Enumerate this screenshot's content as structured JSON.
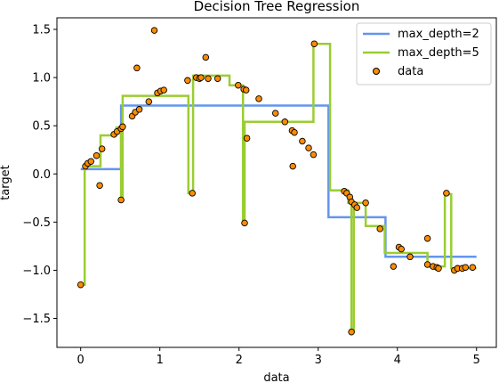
{
  "chart_data": {
    "type": "line",
    "title": "Decision Tree Regression",
    "xlabel": "data",
    "ylabel": "target",
    "xlim": [
      -0.3,
      5.25
    ],
    "ylim": [
      -1.8,
      1.62
    ],
    "xticks": [
      0,
      1,
      2,
      3,
      4,
      5
    ],
    "xtick_labels": [
      "0",
      "1",
      "2",
      "3",
      "4",
      "5"
    ],
    "yticks": [
      -1.5,
      -1.0,
      -0.5,
      0.0,
      0.5,
      1.0,
      1.5
    ],
    "ytick_labels": [
      "−1.5",
      "−1.0",
      "−0.5",
      "0.0",
      "0.5",
      "1.0",
      "1.5"
    ],
    "grid": false,
    "legend_position": "top-right",
    "series": [
      {
        "name": "max_depth=2",
        "kind": "step",
        "color": "#6495ED",
        "points": [
          [
            0.0,
            0.05
          ],
          [
            0.51,
            0.05
          ],
          [
            0.51,
            0.71
          ],
          [
            3.13,
            0.71
          ],
          [
            3.13,
            -0.45
          ],
          [
            3.85,
            -0.45
          ],
          [
            3.85,
            -0.86
          ],
          [
            5.0,
            -0.86
          ]
        ]
      },
      {
        "name": "max_depth=5",
        "kind": "step",
        "color": "#9ACD32",
        "points": [
          [
            0.0,
            -1.15
          ],
          [
            0.05,
            -1.15
          ],
          [
            0.05,
            0.08
          ],
          [
            0.25,
            0.08
          ],
          [
            0.25,
            0.4
          ],
          [
            0.45,
            0.4
          ],
          [
            0.45,
            0.48
          ],
          [
            0.51,
            0.48
          ],
          [
            0.51,
            -0.27
          ],
          [
            0.53,
            -0.27
          ],
          [
            0.53,
            0.81
          ],
          [
            1.36,
            0.81
          ],
          [
            1.36,
            -0.2
          ],
          [
            1.42,
            -0.2
          ],
          [
            1.42,
            1.02
          ],
          [
            1.88,
            1.02
          ],
          [
            1.88,
            0.92
          ],
          [
            2.05,
            0.92
          ],
          [
            2.05,
            -0.51
          ],
          [
            2.07,
            -0.51
          ],
          [
            2.07,
            0.54
          ],
          [
            2.94,
            0.54
          ],
          [
            2.94,
            1.35
          ],
          [
            3.15,
            1.35
          ],
          [
            3.15,
            -0.17
          ],
          [
            3.38,
            -0.17
          ],
          [
            3.38,
            -0.3
          ],
          [
            3.42,
            -0.3
          ],
          [
            3.42,
            -1.64
          ],
          [
            3.45,
            -1.64
          ],
          [
            3.45,
            -0.3
          ],
          [
            3.6,
            -0.3
          ],
          [
            3.6,
            -0.54
          ],
          [
            3.84,
            -0.54
          ],
          [
            3.84,
            -0.82
          ],
          [
            4.38,
            -0.82
          ],
          [
            4.38,
            -0.96
          ],
          [
            4.6,
            -0.96
          ],
          [
            4.6,
            -0.21
          ],
          [
            4.68,
            -0.21
          ],
          [
            4.68,
            -0.98
          ],
          [
            5.0,
            -0.98
          ]
        ]
      }
    ],
    "scatter": {
      "name": "data",
      "fill": "#FF8C00",
      "edge": "#000000",
      "points": [
        [
          0.0,
          -1.15
        ],
        [
          0.06,
          0.08
        ],
        [
          0.09,
          0.11
        ],
        [
          0.13,
          0.13
        ],
        [
          0.2,
          0.19
        ],
        [
          0.24,
          -0.12
        ],
        [
          0.27,
          0.26
        ],
        [
          0.42,
          0.41
        ],
        [
          0.46,
          0.44
        ],
        [
          0.51,
          0.47
        ],
        [
          0.51,
          -0.27
        ],
        [
          0.53,
          0.49
        ],
        [
          0.65,
          0.6
        ],
        [
          0.69,
          0.64
        ],
        [
          0.71,
          1.1
        ],
        [
          0.74,
          0.67
        ],
        [
          0.86,
          0.75
        ],
        [
          0.93,
          1.49
        ],
        [
          0.97,
          0.84
        ],
        [
          1.01,
          0.86
        ],
        [
          1.05,
          0.87
        ],
        [
          1.35,
          0.97
        ],
        [
          1.41,
          -0.2
        ],
        [
          1.46,
          1.0
        ],
        [
          1.5,
          0.99
        ],
        [
          1.52,
          1.0
        ],
        [
          1.58,
          1.21
        ],
        [
          1.61,
          0.99
        ],
        [
          1.73,
          0.99
        ],
        [
          1.99,
          0.92
        ],
        [
          2.06,
          0.88
        ],
        [
          2.07,
          -0.51
        ],
        [
          2.09,
          0.87
        ],
        [
          2.1,
          0.37
        ],
        [
          2.25,
          0.78
        ],
        [
          2.46,
          0.63
        ],
        [
          2.58,
          0.54
        ],
        [
          2.67,
          0.45
        ],
        [
          2.68,
          0.08
        ],
        [
          2.7,
          0.43
        ],
        [
          2.8,
          0.34
        ],
        [
          2.88,
          0.27
        ],
        [
          2.94,
          0.2
        ],
        [
          2.95,
          1.35
        ],
        [
          3.33,
          -0.18
        ],
        [
          3.36,
          -0.2
        ],
        [
          3.4,
          -0.24
        ],
        [
          3.42,
          -0.29
        ],
        [
          3.42,
          -1.64
        ],
        [
          3.46,
          -0.32
        ],
        [
          3.49,
          -0.35
        ],
        [
          3.6,
          -0.3
        ],
        [
          3.78,
          -0.57
        ],
        [
          3.95,
          -0.96
        ],
        [
          4.02,
          -0.76
        ],
        [
          4.05,
          -0.78
        ],
        [
          4.16,
          -0.86
        ],
        [
          4.38,
          -0.67
        ],
        [
          4.38,
          -0.94
        ],
        [
          4.45,
          -0.96
        ],
        [
          4.5,
          -0.97
        ],
        [
          4.52,
          -0.98
        ],
        [
          4.62,
          -0.2
        ],
        [
          4.72,
          -1.0
        ],
        [
          4.76,
          -0.98
        ],
        [
          4.82,
          -0.98
        ],
        [
          4.86,
          -0.97
        ],
        [
          4.95,
          -0.97
        ]
      ]
    }
  }
}
